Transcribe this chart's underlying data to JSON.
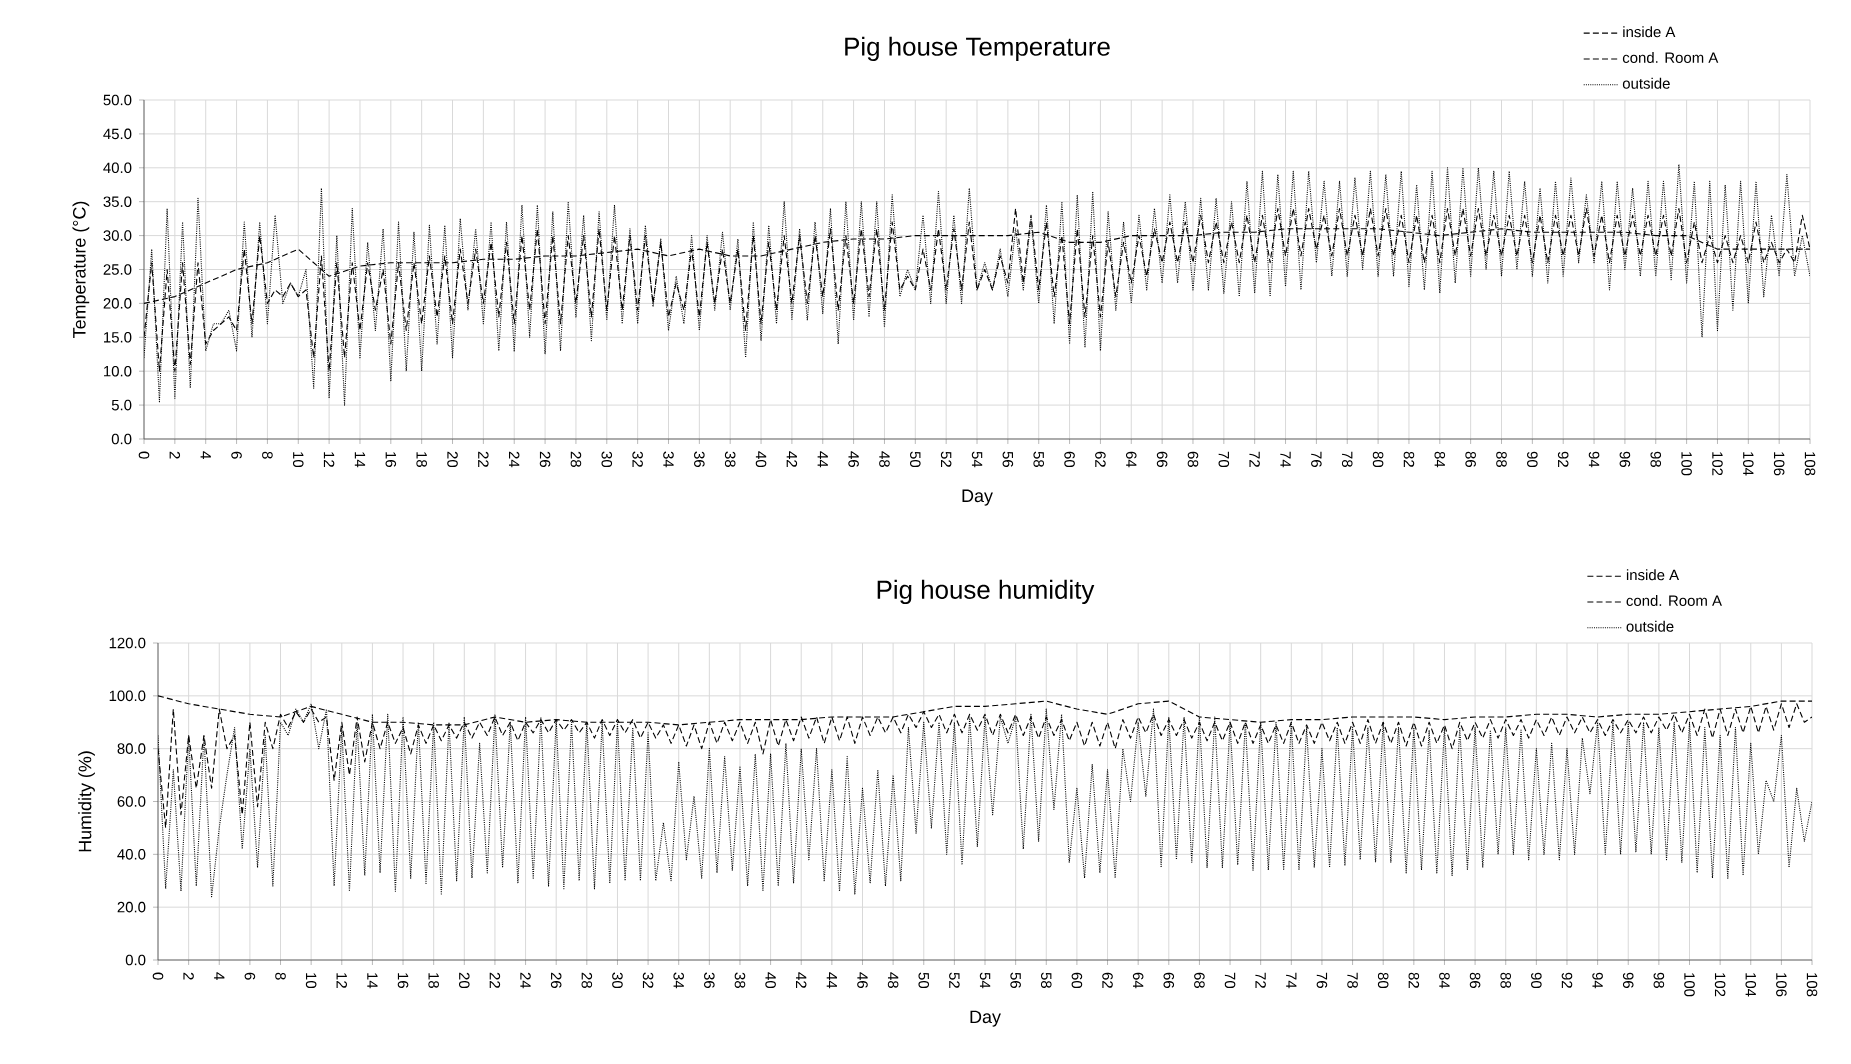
{
  "chart_data": [
    {
      "type": "line",
      "title": "Pig house Temperature",
      "xlabel": "Day",
      "ylabel": "Temperature (°C)",
      "x": [
        0,
        0.5,
        1,
        1.5,
        2,
        2.5,
        3,
        3.5,
        4,
        4.5,
        5,
        5.5,
        6,
        6.5,
        7,
        7.5,
        8,
        8.5,
        9,
        9.5,
        10,
        10.5,
        11,
        11.5,
        12,
        12.5,
        13,
        13.5,
        14,
        14.5,
        15,
        15.5,
        16,
        16.5,
        17,
        17.5,
        18,
        18.5,
        19,
        19.5,
        20,
        20.5,
        21,
        21.5,
        22,
        22.5,
        23,
        23.5,
        24,
        24.5,
        25,
        25.5,
        26,
        26.5,
        27,
        27.5,
        28,
        28.5,
        29,
        29.5,
        30,
        30.5,
        31,
        31.5,
        32,
        32.5,
        33,
        33.5,
        34,
        34.5,
        35,
        35.5,
        36,
        36.5,
        37,
        37.5,
        38,
        38.5,
        39,
        39.5,
        40,
        40.5,
        41,
        41.5,
        42,
        42.5,
        43,
        43.5,
        44,
        44.5,
        45,
        45.5,
        46,
        46.5,
        47,
        47.5,
        48,
        48.5,
        49,
        49.5,
        50,
        50.5,
        51,
        51.5,
        52,
        52.5,
        53,
        53.5,
        54,
        54.5,
        55,
        55.5,
        56,
        56.5,
        57,
        57.5,
        58,
        58.5,
        59,
        59.5,
        60,
        60.5,
        61,
        61.5,
        62,
        62.5,
        63,
        63.5,
        64,
        64.5,
        65,
        65.5,
        66,
        66.5,
        67,
        67.5,
        68,
        68.5,
        69,
        69.5,
        70,
        70.5,
        71,
        71.5,
        72,
        72.5,
        73,
        73.5,
        74,
        74.5,
        75,
        75.5,
        76,
        76.5,
        77,
        77.5,
        78,
        78.5,
        79,
        79.5,
        80,
        80.5,
        81,
        81.5,
        82,
        82.5,
        83,
        83.5,
        84,
        84.5,
        85,
        85.5,
        86,
        86.5,
        87,
        87.5,
        88,
        88.5,
        89,
        89.5,
        90,
        90.5,
        91,
        91.5,
        92,
        92.5,
        93,
        93.5,
        94,
        94.5,
        95,
        95.5,
        96,
        96.5,
        97,
        97.5,
        98,
        98.5,
        99,
        99.5,
        100,
        100.5,
        101,
        101.5,
        102,
        102.5,
        103,
        103.5,
        104,
        104.5,
        105,
        105.5,
        106,
        106.5,
        107,
        107.5,
        108
      ],
      "xlim": [
        0,
        108
      ],
      "xticks": [
        0,
        2,
        4,
        6,
        8,
        10,
        12,
        14,
        16,
        18,
        20,
        22,
        24,
        26,
        28,
        30,
        32,
        34,
        36,
        38,
        40,
        42,
        44,
        46,
        48,
        50,
        52,
        54,
        56,
        58,
        60,
        62,
        64,
        66,
        68,
        70,
        72,
        74,
        76,
        78,
        80,
        82,
        84,
        86,
        88,
        90,
        92,
        94,
        96,
        98,
        100,
        102,
        104,
        106,
        108
      ],
      "ylim": [
        0,
        50
      ],
      "yticks": [
        {
          "value": 0,
          "label": "0.0"
        },
        {
          "value": 5,
          "label": "5.0"
        },
        {
          "value": 10,
          "label": "10.0"
        },
        {
          "value": 15,
          "label": "15.0"
        },
        {
          "value": 20,
          "label": "20.0"
        },
        {
          "value": 25,
          "label": "25.0"
        },
        {
          "value": 30,
          "label": "30.0"
        },
        {
          "value": 35,
          "label": "35.0"
        },
        {
          "value": 40,
          "label": "40.0"
        },
        {
          "value": 45,
          "label": "45.0"
        },
        {
          "value": 50,
          "label": "50.0"
        }
      ],
      "grid": true,
      "legend": "top right",
      "series": [
        {
          "name": "inside A",
          "color": "#000000",
          "line_style": "dashed",
          "x": [
            0,
            2,
            4,
            6,
            8,
            10,
            12,
            14,
            16,
            18,
            20,
            22,
            24,
            26,
            28,
            30,
            32,
            34,
            36,
            38,
            40,
            42,
            44,
            46,
            48,
            50,
            52,
            54,
            56,
            58,
            60,
            62,
            64,
            66,
            68,
            70,
            72,
            74,
            76,
            78,
            80,
            82,
            84,
            86,
            88,
            90,
            92,
            94,
            96,
            98,
            100,
            102,
            104,
            106,
            108
          ],
          "values": [
            20,
            21,
            23,
            25,
            26,
            28,
            24,
            25.5,
            26,
            26,
            26,
            26.5,
            26.5,
            27,
            27,
            27.5,
            28,
            27,
            28,
            27,
            27,
            28,
            29,
            29.5,
            29.5,
            30,
            30,
            30,
            30,
            30.5,
            29,
            29,
            30,
            30,
            30,
            30.5,
            30.5,
            31,
            31,
            31,
            31,
            30.5,
            30,
            30.5,
            31,
            30.5,
            30.5,
            30.5,
            30.5,
            30,
            30,
            28,
            28,
            28,
            28
          ]
        },
        {
          "name": "cond. Room A",
          "color": "#000000",
          "line_style": "dashed",
          "values": [
            15,
            26,
            10,
            25,
            10,
            26,
            11,
            26,
            14,
            16,
            17,
            18,
            16,
            28,
            17,
            30,
            20,
            22,
            21,
            23,
            21,
            22,
            12,
            27,
            10,
            26,
            12,
            26,
            16,
            26,
            19,
            25,
            14,
            26,
            16,
            26,
            17,
            27,
            18,
            27,
            17,
            28,
            20,
            28,
            20,
            29,
            18,
            29,
            17,
            30,
            19,
            31,
            17,
            30,
            17,
            30,
            20,
            30,
            18,
            31,
            19,
            30,
            19,
            30,
            19,
            30,
            20,
            29,
            18,
            23,
            19,
            28,
            18,
            29,
            20,
            28,
            20,
            28,
            16,
            30,
            17,
            29,
            19,
            30,
            20,
            30,
            20,
            30,
            21,
            31,
            19,
            30,
            20,
            31,
            21,
            31,
            19,
            32,
            22,
            24,
            22,
            28,
            22,
            31,
            22,
            31,
            22,
            32,
            22,
            25,
            22,
            27,
            23,
            34,
            23,
            33,
            22,
            32,
            21,
            30,
            17,
            31,
            18,
            30,
            18,
            29,
            21,
            29,
            23,
            30,
            24,
            31,
            26,
            32,
            26,
            32,
            26,
            33,
            26,
            32,
            26,
            32,
            26,
            33,
            26,
            33,
            26,
            34,
            27,
            34,
            27,
            34,
            28,
            33,
            27,
            34,
            27,
            33,
            27,
            34,
            27,
            34,
            27,
            33,
            26,
            33,
            26,
            33,
            26,
            34,
            27,
            34,
            27,
            34,
            27,
            33,
            27,
            33,
            27,
            33,
            26,
            33,
            26,
            33,
            27,
            33,
            27,
            34,
            27,
            33,
            26,
            33,
            27,
            33,
            27,
            33,
            27,
            33,
            27,
            34,
            26,
            32,
            26,
            30,
            26,
            30,
            26,
            30,
            26,
            32,
            26,
            29,
            26,
            28,
            26,
            33,
            28
          ]
        },
        {
          "name": "outside",
          "color": "#000000",
          "line_style": "dotted",
          "values": [
            12,
            28,
            5.5,
            34,
            6,
            32,
            7.5,
            35.5,
            13,
            17,
            17,
            19,
            13,
            32,
            15,
            32,
            17,
            33,
            20,
            23,
            21,
            25,
            7.5,
            37,
            6,
            30,
            5,
            34,
            12,
            29,
            16,
            31,
            8.5,
            32,
            10,
            30.5,
            10,
            31.5,
            14,
            31.5,
            12,
            32.5,
            19,
            31,
            17,
            32,
            13,
            32,
            13,
            34.5,
            15,
            34.5,
            12.5,
            33.5,
            13,
            35,
            18,
            33,
            14.5,
            33.5,
            17.5,
            34.5,
            17,
            31,
            17,
            31.5,
            19.5,
            29.5,
            16,
            24,
            17,
            30,
            16,
            30,
            19,
            30.5,
            19,
            29.5,
            12,
            32,
            14.5,
            31.5,
            17,
            35,
            17.5,
            31,
            17.5,
            32,
            18.5,
            34,
            14,
            35,
            17.5,
            35,
            18,
            35,
            16.5,
            36,
            21,
            25,
            22,
            33,
            20,
            36.5,
            20,
            33,
            20,
            37,
            22,
            26,
            22,
            28,
            21,
            31,
            22,
            32.5,
            20,
            34.5,
            17,
            35,
            14,
            36,
            13.5,
            36.5,
            13,
            33.5,
            19,
            32,
            20,
            33,
            22,
            34,
            23,
            36,
            23,
            35,
            22,
            35.5,
            22,
            35.5,
            21.5,
            35,
            21,
            38,
            21.5,
            39.5,
            21,
            39,
            22.5,
            39.5,
            22,
            39.5,
            26,
            38,
            24,
            38,
            24,
            38.5,
            25,
            39.5,
            24,
            39,
            24,
            39.5,
            22.5,
            37.5,
            22,
            39.5,
            21.5,
            40,
            23,
            40,
            24,
            40,
            25,
            39.5,
            24,
            39.5,
            25,
            38,
            24,
            37,
            23,
            38,
            24,
            38.5,
            26,
            36,
            26,
            38,
            22,
            38,
            25,
            37,
            24,
            38,
            24,
            38,
            23.5,
            40.5,
            23,
            38,
            15,
            38,
            16,
            37.5,
            19,
            38,
            20,
            38,
            21,
            33,
            24,
            39,
            24,
            30,
            24
          ]
        }
      ]
    },
    {
      "type": "line",
      "title": "Pig house humidity",
      "xlabel": "Day",
      "ylabel": "Humidity (%)",
      "x": [
        0,
        0.5,
        1,
        1.5,
        2,
        2.5,
        3,
        3.5,
        4,
        4.5,
        5,
        5.5,
        6,
        6.5,
        7,
        7.5,
        8,
        8.5,
        9,
        9.5,
        10,
        10.5,
        11,
        11.5,
        12,
        12.5,
        13,
        13.5,
        14,
        14.5,
        15,
        15.5,
        16,
        16.5,
        17,
        17.5,
        18,
        18.5,
        19,
        19.5,
        20,
        20.5,
        21,
        21.5,
        22,
        22.5,
        23,
        23.5,
        24,
        24.5,
        25,
        25.5,
        26,
        26.5,
        27,
        27.5,
        28,
        28.5,
        29,
        29.5,
        30,
        30.5,
        31,
        31.5,
        32,
        32.5,
        33,
        33.5,
        34,
        34.5,
        35,
        35.5,
        36,
        36.5,
        37,
        37.5,
        38,
        38.5,
        39,
        39.5,
        40,
        40.5,
        41,
        41.5,
        42,
        42.5,
        43,
        43.5,
        44,
        44.5,
        45,
        45.5,
        46,
        46.5,
        47,
        47.5,
        48,
        48.5,
        49,
        49.5,
        50,
        50.5,
        51,
        51.5,
        52,
        52.5,
        53,
        53.5,
        54,
        54.5,
        55,
        55.5,
        56,
        56.5,
        57,
        57.5,
        58,
        58.5,
        59,
        59.5,
        60,
        60.5,
        61,
        61.5,
        62,
        62.5,
        63,
        63.5,
        64,
        64.5,
        65,
        65.5,
        66,
        66.5,
        67,
        67.5,
        68,
        68.5,
        69,
        69.5,
        70,
        70.5,
        71,
        71.5,
        72,
        72.5,
        73,
        73.5,
        74,
        74.5,
        75,
        75.5,
        76,
        76.5,
        77,
        77.5,
        78,
        78.5,
        79,
        79.5,
        80,
        80.5,
        81,
        81.5,
        82,
        82.5,
        83,
        83.5,
        84,
        84.5,
        85,
        85.5,
        86,
        86.5,
        87,
        87.5,
        88,
        88.5,
        89,
        89.5,
        90,
        90.5,
        91,
        91.5,
        92,
        92.5,
        93,
        93.5,
        94,
        94.5,
        95,
        95.5,
        96,
        96.5,
        97,
        97.5,
        98,
        98.5,
        99,
        99.5,
        100,
        100.5,
        101,
        101.5,
        102,
        102.5,
        103,
        103.5,
        104,
        104.5,
        105,
        105.5,
        106,
        106.5,
        107,
        107.5,
        108
      ],
      "xlim": [
        0,
        108
      ],
      "xticks": [
        0,
        2,
        4,
        6,
        8,
        10,
        12,
        14,
        16,
        18,
        20,
        22,
        24,
        26,
        28,
        30,
        32,
        34,
        36,
        38,
        40,
        42,
        44,
        46,
        48,
        50,
        52,
        54,
        56,
        58,
        60,
        62,
        64,
        66,
        68,
        70,
        72,
        74,
        76,
        78,
        80,
        82,
        84,
        86,
        88,
        90,
        92,
        94,
        96,
        98,
        100,
        102,
        104,
        106,
        108
      ],
      "ylim": [
        0,
        120
      ],
      "yticks": [
        {
          "value": 0,
          "label": "0.0"
        },
        {
          "value": 20,
          "label": "20.0"
        },
        {
          "value": 40,
          "label": "40.0"
        },
        {
          "value": 60,
          "label": "60.0"
        },
        {
          "value": 80,
          "label": "80.0"
        },
        {
          "value": 100,
          "label": "100.0"
        },
        {
          "value": 120,
          "label": "120.0"
        }
      ],
      "grid": true,
      "legend": "top right",
      "series": [
        {
          "name": "inside A",
          "color": "#000000",
          "line_style": "dashed",
          "x": [
            0,
            2,
            4,
            6,
            8,
            10,
            12,
            14,
            16,
            18,
            20,
            22,
            24,
            26,
            28,
            30,
            32,
            34,
            36,
            38,
            40,
            42,
            44,
            46,
            48,
            50,
            52,
            54,
            56,
            58,
            60,
            62,
            64,
            66,
            68,
            70,
            72,
            74,
            76,
            78,
            80,
            82,
            84,
            86,
            88,
            90,
            92,
            94,
            96,
            98,
            100,
            102,
            104,
            106,
            108
          ],
          "values": [
            100,
            97,
            95,
            93,
            92,
            96,
            93,
            90,
            90,
            89,
            89,
            92,
            90,
            91,
            90,
            90,
            90,
            89,
            90,
            91,
            91,
            91,
            92,
            92,
            92,
            94,
            96,
            96,
            97,
            98,
            95,
            93,
            97,
            98,
            92,
            91,
            90,
            91,
            91,
            92,
            92,
            92,
            91,
            92,
            92,
            93,
            93,
            92,
            93,
            93,
            94,
            95,
            96,
            98,
            98
          ]
        },
        {
          "name": "cond. Room A",
          "color": "#000000",
          "line_style": "dashed",
          "values": [
            80,
            50,
            95,
            55,
            85,
            65,
            85,
            65,
            95,
            80,
            85,
            55,
            90,
            58,
            90,
            80,
            93,
            88,
            94,
            90,
            95,
            90,
            92,
            68,
            90,
            70,
            92,
            75,
            90,
            80,
            90,
            82,
            88,
            78,
            89,
            82,
            89,
            83,
            89,
            84,
            90,
            84,
            90,
            85,
            92,
            85,
            90,
            83,
            90,
            86,
            91,
            86,
            91,
            87,
            91,
            86,
            90,
            84,
            91,
            85,
            91,
            86,
            91,
            84,
            90,
            84,
            89,
            82,
            89,
            81,
            89,
            80,
            90,
            82,
            90,
            83,
            90,
            82,
            90,
            78,
            91,
            81,
            91,
            83,
            92,
            84,
            92,
            82,
            92,
            83,
            92,
            82,
            92,
            85,
            92,
            86,
            92,
            86,
            93,
            88,
            94,
            88,
            93,
            86,
            93,
            86,
            93,
            87,
            93,
            85,
            93,
            86,
            93,
            85,
            92,
            84,
            92,
            85,
            91,
            83,
            90,
            81,
            90,
            81,
            90,
            80,
            91,
            84,
            92,
            86,
            93,
            85,
            91,
            85,
            91,
            84,
            90,
            83,
            90,
            83,
            90,
            82,
            90,
            82,
            89,
            82,
            89,
            82,
            90,
            82,
            89,
            82,
            90,
            83,
            90,
            82,
            90,
            82,
            91,
            82,
            90,
            82,
            90,
            81,
            90,
            81,
            90,
            82,
            89,
            80,
            90,
            83,
            90,
            84,
            91,
            84,
            91,
            85,
            91,
            84,
            91,
            85,
            92,
            85,
            92,
            86,
            92,
            86,
            91,
            85,
            91,
            86,
            91,
            86,
            92,
            86,
            92,
            87,
            93,
            86,
            93,
            85,
            95,
            84,
            95,
            85,
            95,
            86,
            96,
            86,
            96,
            87,
            97,
            88,
            97,
            90,
            92
          ]
        },
        {
          "name": "outside",
          "color": "#000000",
          "line_style": "dotted",
          "values": [
            85,
            27,
            72,
            26,
            85,
            28,
            85,
            24,
            50,
            70,
            88,
            42,
            80,
            35,
            85,
            28,
            90,
            85,
            95,
            90,
            97,
            80,
            95,
            28,
            88,
            26,
            90,
            32,
            93,
            33,
            93,
            26,
            92,
            31,
            90,
            29,
            90,
            25,
            90,
            30,
            92,
            31,
            82,
            33,
            93,
            35,
            90,
            29,
            92,
            31,
            92,
            28,
            91,
            27,
            90,
            30,
            90,
            27,
            90,
            29,
            90,
            30,
            88,
            30,
            86,
            30,
            52,
            30,
            75,
            38,
            62,
            31,
            80,
            33,
            77,
            34,
            73,
            28,
            78,
            26,
            78,
            28,
            82,
            29,
            80,
            38,
            80,
            30,
            72,
            26,
            77,
            25,
            65,
            29,
            72,
            28,
            70,
            30,
            88,
            48,
            90,
            50,
            90,
            40,
            90,
            36,
            92,
            43,
            92,
            55,
            92,
            82,
            92,
            42,
            93,
            45,
            95,
            57,
            93,
            37,
            65,
            31,
            74,
            33,
            72,
            31,
            80,
            60,
            90,
            62,
            95,
            35,
            92,
            38,
            92,
            37,
            92,
            35,
            92,
            35,
            90,
            36,
            90,
            34,
            90,
            34,
            90,
            34,
            90,
            34,
            88,
            35,
            80,
            35,
            88,
            36,
            88,
            38,
            88,
            37,
            90,
            37,
            88,
            33,
            88,
            34,
            87,
            33,
            88,
            32,
            88,
            34,
            88,
            35,
            87,
            40,
            88,
            40,
            87,
            38,
            80,
            40,
            82,
            38,
            80,
            40,
            84,
            63,
            90,
            40,
            90,
            40,
            90,
            41,
            90,
            40,
            88,
            38,
            90,
            37,
            90,
            33,
            88,
            31,
            85,
            31,
            88,
            32,
            82,
            40,
            68,
            60,
            85,
            35,
            65,
            45,
            60
          ]
        }
      ]
    }
  ]
}
